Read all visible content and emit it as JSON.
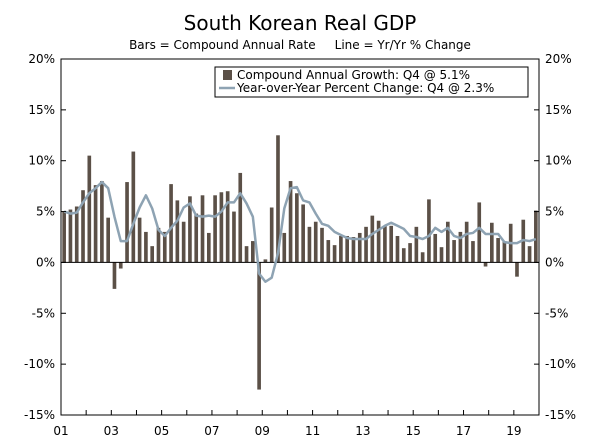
{
  "chart_data": {
    "type": "bar",
    "title": "South Korean Real GDP",
    "subtitle": "Bars = Compound Annual Rate     Line = Yr/Yr % Change",
    "xlabel": "",
    "ylabel": "",
    "ylim": [
      -15,
      20
    ],
    "y_ticks": [
      20,
      15,
      10,
      5,
      0,
      -5,
      -10,
      -15
    ],
    "y_tick_labels": [
      "20%",
      "15%",
      "10%",
      "5%",
      "0%",
      "-5%",
      "-10%",
      "-15%"
    ],
    "x_ticks": [
      "01",
      "03",
      "05",
      "07",
      "09",
      "11",
      "13",
      "15",
      "17",
      "19"
    ],
    "categories": [
      "2001Q1",
      "2001Q2",
      "2001Q3",
      "2001Q4",
      "2002Q1",
      "2002Q2",
      "2002Q3",
      "2002Q4",
      "2003Q1",
      "2003Q2",
      "2003Q3",
      "2003Q4",
      "2004Q1",
      "2004Q2",
      "2004Q3",
      "2004Q4",
      "2005Q1",
      "2005Q2",
      "2005Q3",
      "2005Q4",
      "2006Q1",
      "2006Q2",
      "2006Q3",
      "2006Q4",
      "2007Q1",
      "2007Q2",
      "2007Q3",
      "2007Q4",
      "2008Q1",
      "2008Q2",
      "2008Q3",
      "2008Q4",
      "2009Q1",
      "2009Q2",
      "2009Q3",
      "2009Q4",
      "2010Q1",
      "2010Q2",
      "2010Q3",
      "2010Q4",
      "2011Q1",
      "2011Q2",
      "2011Q3",
      "2011Q4",
      "2012Q1",
      "2012Q2",
      "2012Q3",
      "2012Q4",
      "2013Q1",
      "2013Q2",
      "2013Q3",
      "2013Q4",
      "2014Q1",
      "2014Q2",
      "2014Q3",
      "2014Q4",
      "2015Q1",
      "2015Q2",
      "2015Q3",
      "2015Q4",
      "2016Q1",
      "2016Q2",
      "2016Q3",
      "2016Q4",
      "2017Q1",
      "2017Q2",
      "2017Q3",
      "2017Q4",
      "2018Q1",
      "2018Q2",
      "2018Q3",
      "2018Q4",
      "2019Q1",
      "2019Q2",
      "2019Q3",
      "2019Q4"
    ],
    "series": [
      {
        "name": "Compound Annual Growth: Q4 @ 5.1%",
        "type": "bar",
        "color": "#5b5047",
        "values": [
          5.0,
          5.2,
          5.5,
          7.1,
          10.5,
          7.6,
          8.0,
          4.4,
          -2.6,
          -0.6,
          7.9,
          10.9,
          4.4,
          3.0,
          1.6,
          3.4,
          3.0,
          7.7,
          6.1,
          4.0,
          6.5,
          4.8,
          6.6,
          2.9,
          6.6,
          6.9,
          7.0,
          5.0,
          8.8,
          1.6,
          2.1,
          -12.5,
          0.3,
          5.4,
          12.5,
          2.9,
          8.0,
          6.8,
          5.7,
          3.5,
          4.0,
          3.4,
          2.2,
          1.7,
          2.6,
          2.6,
          2.5,
          2.9,
          3.5,
          4.6,
          4.1,
          3.6,
          3.6,
          2.6,
          1.4,
          1.9,
          3.5,
          1.0,
          6.2,
          2.8,
          1.5,
          4.0,
          2.2,
          3.0,
          4.0,
          2.1,
          5.9,
          -0.4,
          3.9,
          2.4,
          2.1,
          3.8,
          -1.4,
          4.2,
          1.6,
          5.1
        ]
      },
      {
        "name": "Year-over-Year Percent Change: Q4 @ 2.3%",
        "type": "line",
        "color": "#8ea3b3",
        "values": [
          5.0,
          4.8,
          4.9,
          5.9,
          6.8,
          7.3,
          7.9,
          7.3,
          4.5,
          2.1,
          2.1,
          3.8,
          5.4,
          6.6,
          5.3,
          3.2,
          2.6,
          3.4,
          4.1,
          5.4,
          5.8,
          4.6,
          4.5,
          4.6,
          4.5,
          5.0,
          5.9,
          5.9,
          6.8,
          5.8,
          4.5,
          -1.1,
          -1.9,
          -1.5,
          0.9,
          5.3,
          7.3,
          7.4,
          6.1,
          5.9,
          4.8,
          3.8,
          3.6,
          3.0,
          2.7,
          2.4,
          2.3,
          2.3,
          2.3,
          2.8,
          3.2,
          3.6,
          3.9,
          3.6,
          3.3,
          2.6,
          2.5,
          2.3,
          2.6,
          3.4,
          3.0,
          3.4,
          2.6,
          2.4,
          2.8,
          2.9,
          3.4,
          2.8,
          2.8,
          2.8,
          2.0,
          1.9,
          1.9,
          2.2,
          2.1,
          2.3
        ]
      }
    ],
    "legend_position": "top-right",
    "grid": false
  }
}
